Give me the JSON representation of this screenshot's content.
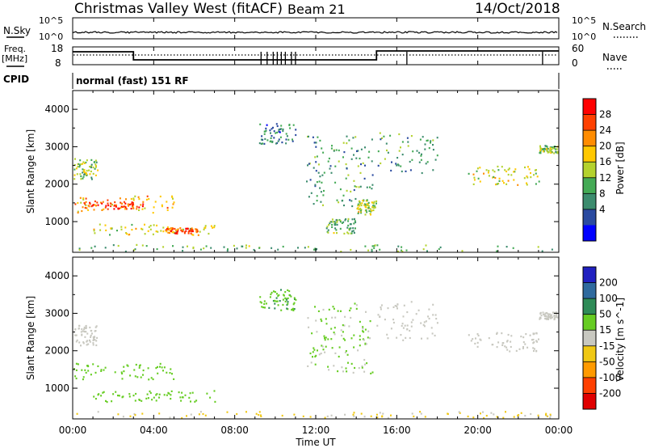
{
  "header": {
    "station": "Christmas Valley West (fitACF)",
    "beam": "Beam 21",
    "date": "14/Oct/2018"
  },
  "noise_panel": {
    "left_label": "N.Sky",
    "right_label": "N.Search",
    "left_ticks": [
      "10^5",
      "10^0"
    ],
    "right_ticks": [
      "10^5",
      "10^0"
    ]
  },
  "freq_panel": {
    "left_label_1": "Freq.",
    "left_label_2": "[MHz]",
    "right_label": "Nave",
    "left_ticks": [
      "18",
      "8"
    ],
    "right_ticks": [
      "60",
      "0"
    ]
  },
  "cpid_panel": {
    "label": "CPID",
    "value": "normal (fast) 151 RF"
  },
  "colors": {
    "power_scale": [
      "#0000ff",
      "#2a4aa0",
      "#3c8c6e",
      "#44aa55",
      "#b4d22e",
      "#ffc800",
      "#ff8c00",
      "#ff4000",
      "#ff0000"
    ],
    "velocity_scale": [
      "#2020c0",
      "#2f6a9e",
      "#2e8b57",
      "#66cc22",
      "#c8c8c0",
      "#f0c814",
      "#ff9a00",
      "#ff4000",
      "#e00000"
    ],
    "ground_scatter": "#b4b4b4"
  },
  "chart_data": [
    {
      "type": "heatmap",
      "name": "power",
      "ylabel": "Slant Range [km]",
      "xlabel": "Time UT",
      "x_ticks": [
        "00:00",
        "04:00",
        "08:00",
        "12:00",
        "16:00",
        "20:00",
        "00:00"
      ],
      "y_ticks": [
        1000,
        2000,
        3000,
        4000
      ],
      "ylim": [
        180,
        4500
      ],
      "xlim_hours": [
        0,
        24
      ],
      "colorbar_label": "Power [dB]",
      "colorbar_ticks": [
        4,
        8,
        12,
        16,
        20,
        24,
        28
      ],
      "colorbar_range": [
        0,
        30
      ],
      "echo_regions_hours_km": [
        {
          "t0": 0.0,
          "t1": 1.2,
          "r0": 2150,
          "r1": 2700,
          "level": 14
        },
        {
          "t0": 0.0,
          "t1": 5.0,
          "r0": 1250,
          "r1": 1700,
          "level": 20
        },
        {
          "t0": 0.5,
          "t1": 3.5,
          "r0": 1350,
          "r1": 1550,
          "level": 26
        },
        {
          "t0": 1.0,
          "t1": 7.0,
          "r0": 650,
          "r1": 950,
          "level": 16
        },
        {
          "t0": 4.5,
          "t1": 6.2,
          "r0": 700,
          "r1": 850,
          "level": 24
        },
        {
          "t0": 9.2,
          "t1": 11.0,
          "r0": 3100,
          "r1": 3650,
          "level": 8
        },
        {
          "t0": 11.5,
          "t1": 14.8,
          "r0": 1400,
          "r1": 3300,
          "level": 10
        },
        {
          "t0": 12.5,
          "t1": 14.0,
          "r0": 700,
          "r1": 1100,
          "level": 12
        },
        {
          "t0": 14.0,
          "t1": 15.0,
          "r0": 1200,
          "r1": 1600,
          "level": 16
        },
        {
          "t0": 15.0,
          "t1": 18.0,
          "r0": 2300,
          "r1": 3400,
          "level": 10
        },
        {
          "t0": 19.5,
          "t1": 23.0,
          "r0": 2000,
          "r1": 2500,
          "level": 16
        },
        {
          "t0": 23.0,
          "t1": 24.0,
          "r0": 2850,
          "r1": 3050,
          "level": 14
        },
        {
          "t0": 0.0,
          "t1": 24.0,
          "r0": 200,
          "r1": 400,
          "level": 12
        }
      ]
    },
    {
      "type": "heatmap",
      "name": "velocity",
      "ylabel": "Slant Range [km]",
      "xlabel": "Time UT",
      "x_ticks": [
        "00:00",
        "04:00",
        "08:00",
        "12:00",
        "16:00",
        "20:00",
        "00:00"
      ],
      "y_ticks": [
        1000,
        2000,
        3000,
        4000
      ],
      "ylim": [
        180,
        4500
      ],
      "xlim_hours": [
        0,
        24
      ],
      "colorbar_label": "Velocity [m s^-1]",
      "colorbar_ticks": [
        200,
        100,
        50,
        15,
        -15,
        -50,
        -100,
        -200
      ],
      "colorbar_range": [
        -250,
        250
      ],
      "echo_regions_hours_km": [
        {
          "t0": 0.0,
          "t1": 1.2,
          "r0": 2150,
          "r1": 2700,
          "vel": 0
        },
        {
          "t0": 0.0,
          "t1": 5.0,
          "r0": 1250,
          "r1": 1700,
          "vel": 30
        },
        {
          "t0": 1.0,
          "t1": 7.0,
          "r0": 650,
          "r1": 950,
          "vel": 35
        },
        {
          "t0": 9.2,
          "t1": 11.0,
          "r0": 3100,
          "r1": 3650,
          "vel": 40
        },
        {
          "t0": 11.5,
          "t1": 14.8,
          "r0": 1400,
          "r1": 3300,
          "vel": 20
        },
        {
          "t0": 15.0,
          "t1": 18.0,
          "r0": 2300,
          "r1": 3400,
          "vel": 0
        },
        {
          "t0": 19.5,
          "t1": 23.0,
          "r0": 2000,
          "r1": 2500,
          "vel": 0
        },
        {
          "t0": 23.0,
          "t1": 24.0,
          "r0": 2850,
          "r1": 3050,
          "vel": 0
        },
        {
          "t0": 0.0,
          "t1": 24.0,
          "r0": 200,
          "r1": 400,
          "vel": -20
        }
      ]
    }
  ]
}
